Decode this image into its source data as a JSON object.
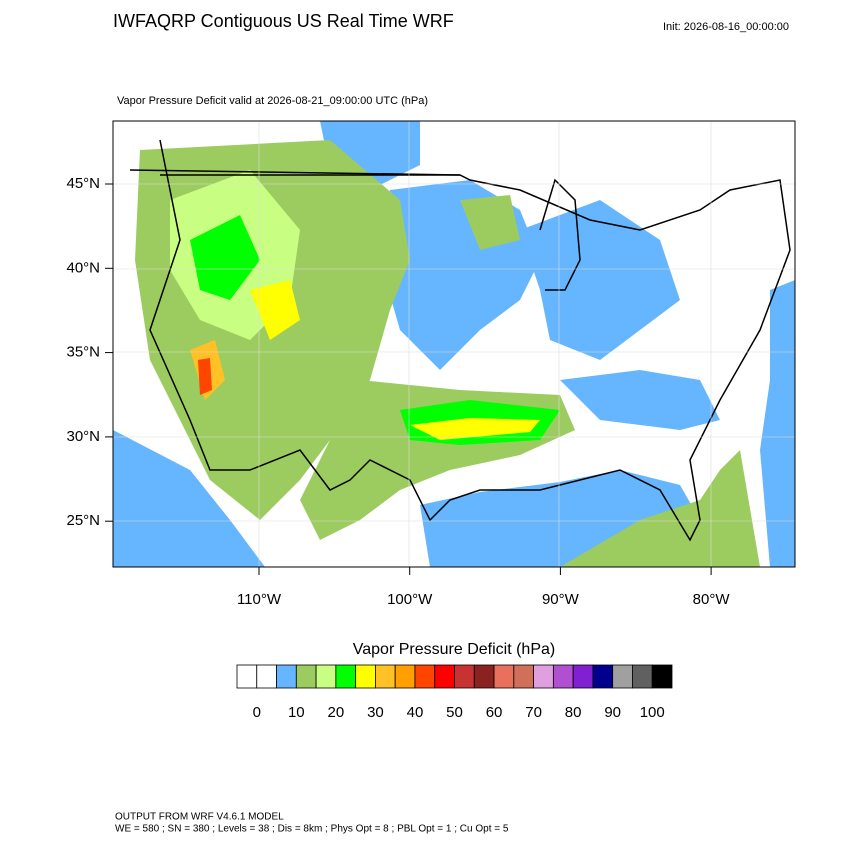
{
  "header": {
    "title": "IWFAQRP Contiguous US Real Time WRF",
    "init": "Init: 2026-08-16_00:00:00"
  },
  "map": {
    "subtitle": "Vapor Pressure Deficit valid at 2026-08-21_09:00:00 UTC   (hPa)",
    "lat_labels": [
      "45°N",
      "40°N",
      "35°N",
      "30°N",
      "25°N"
    ],
    "lon_labels": [
      "110°W",
      "100°W",
      "90°W",
      "80°W"
    ]
  },
  "colorbar": {
    "title": "Vapor Pressure Deficit  (hPa)",
    "colors": [
      "#ffffff",
      "#ffffff",
      "#66b5ff",
      "#9ccc5f",
      "#c8ff82",
      "#00ff00",
      "#ffff00",
      "#ffc125",
      "#ffa000",
      "#ff4500",
      "#ff0000",
      "#c83232",
      "#8b2222",
      "#e8705c",
      "#d0705a",
      "#e0a0e0",
      "#b050d0",
      "#8020d0",
      "#00008c",
      "#a0a0a0",
      "#606060",
      "#000000"
    ],
    "labels": [
      "0",
      "10",
      "20",
      "30",
      "40",
      "50",
      "60",
      "70",
      "80",
      "90",
      "100"
    ]
  },
  "footer": {
    "line1": "OUTPUT FROM WRF V4.6.1 MODEL",
    "line2": "WE = 580 ; SN = 380 ; Levels = 38 ; Dis = 8km ; Phys Opt = 8 ; PBL Opt = 1 ; Cu Opt = 5"
  }
}
